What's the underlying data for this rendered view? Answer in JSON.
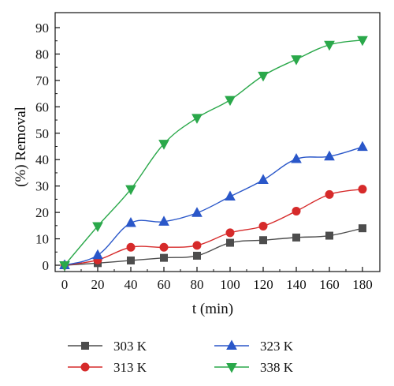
{
  "chart_data": {
    "type": "line",
    "xlabel": "t (min)",
    "ylabel": "(%) Removal",
    "xlim": [
      0,
      180
    ],
    "ylim": [
      0,
      90
    ],
    "xticks": [
      0,
      20,
      40,
      60,
      80,
      100,
      120,
      140,
      160,
      180
    ],
    "yticks": [
      0,
      10,
      20,
      30,
      40,
      50,
      60,
      70,
      80,
      90
    ],
    "grid": false,
    "legend_position": "bottom",
    "x": [
      0,
      20,
      40,
      60,
      80,
      100,
      120,
      140,
      160,
      180
    ],
    "series": [
      {
        "name": "303 K",
        "color": "#4d4d4d",
        "marker": "square",
        "values": [
          0,
          0.8,
          1.8,
          2.8,
          3.6,
          8.5,
          9.5,
          10.5,
          11.2,
          14.0
        ]
      },
      {
        "name": "313 K",
        "color": "#d62a2a",
        "marker": "circle",
        "values": [
          0,
          2.0,
          6.8,
          6.8,
          7.5,
          12.3,
          14.8,
          20.5,
          26.8,
          28.8
        ]
      },
      {
        "name": "323 K",
        "color": "#2a57c9",
        "marker": "triangle-up",
        "values": [
          0,
          3.8,
          16.0,
          16.5,
          19.8,
          26.0,
          32.3,
          40.2,
          41.2,
          44.8
        ]
      },
      {
        "name": "338 K",
        "color": "#2aa84a",
        "marker": "triangle-down",
        "values": [
          0,
          14.8,
          28.8,
          46.0,
          55.8,
          62.6,
          71.8,
          78.0,
          83.5,
          85.3
        ]
      }
    ]
  }
}
